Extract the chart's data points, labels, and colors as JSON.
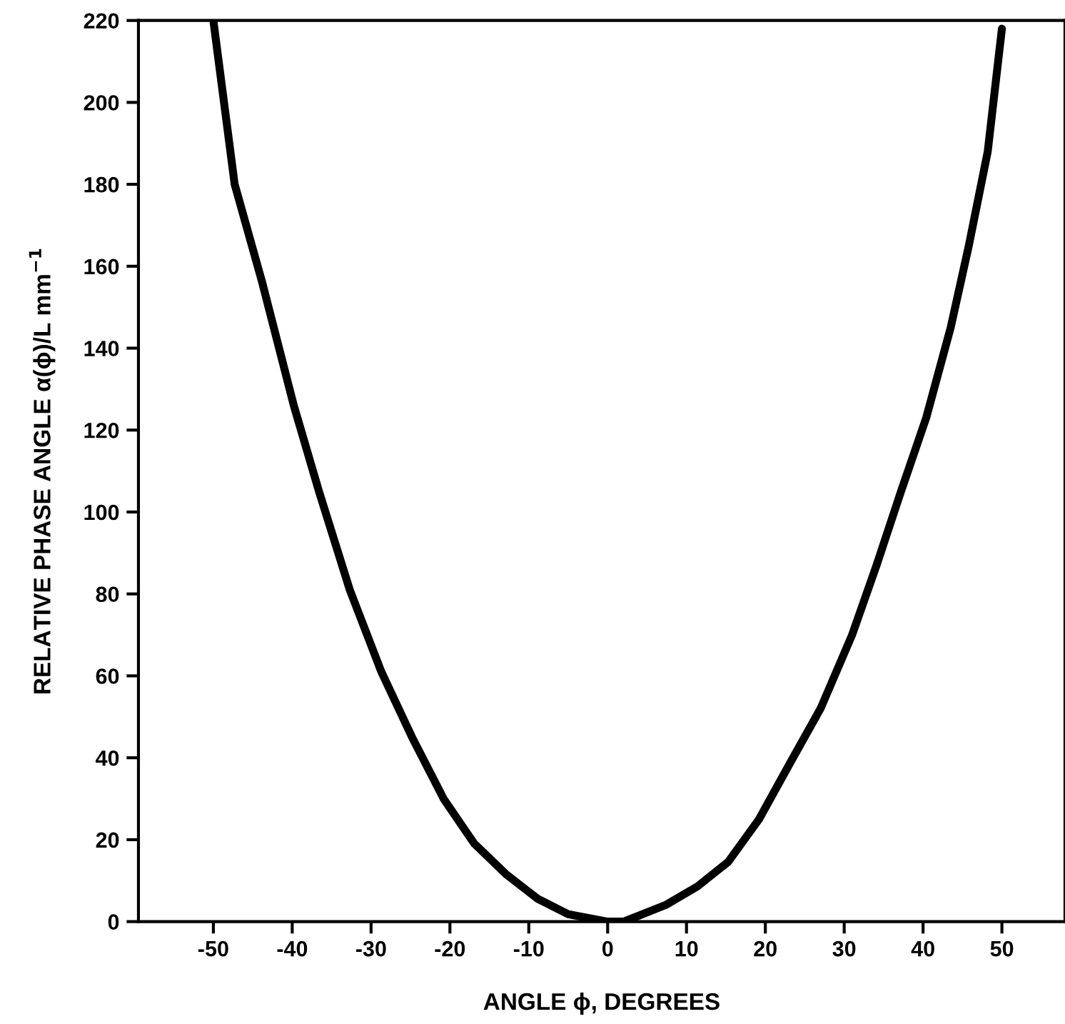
{
  "chart_data": {
    "type": "line",
    "xlabel": "ANGLE ϕ, DEGREES",
    "ylabel": "RELATIVE PHASE ANGLE α(ϕ)/L mm$^{−1}$",
    "xlim": [
      -59.5,
      58
    ],
    "ylim": [
      0,
      220
    ],
    "xticks": [
      -50,
      -40,
      -30,
      -20,
      -10,
      0,
      10,
      20,
      30,
      40,
      50
    ],
    "yticks": [
      0,
      20,
      40,
      60,
      80,
      100,
      120,
      140,
      160,
      180,
      200,
      220
    ],
    "grid": false,
    "legend": false,
    "marker": "none",
    "line_style": "solid",
    "series": [
      {
        "color": "#000000",
        "x": [
          -50,
          -47.3,
          -43.8,
          -39.8,
          -36.6,
          -32.7,
          -28.7,
          -24.8,
          -20.8,
          -16.9,
          -12.9,
          -8.9,
          -5,
          0,
          2,
          3.5,
          7.4,
          11.4,
          15.3,
          19.2,
          23.1,
          27.0,
          31,
          34.1,
          37.2,
          40.4,
          43.5,
          45.8,
          48.2,
          50
        ],
        "values": [
          220,
          180,
          156,
          126,
          105,
          81,
          61,
          45,
          30,
          19,
          11.6,
          5.6,
          1.8,
          0,
          0,
          1.1,
          4.1,
          8.6,
          14.6,
          25,
          38.6,
          52,
          70,
          87,
          105,
          123,
          145,
          165,
          188,
          218
        ]
      }
    ]
  }
}
